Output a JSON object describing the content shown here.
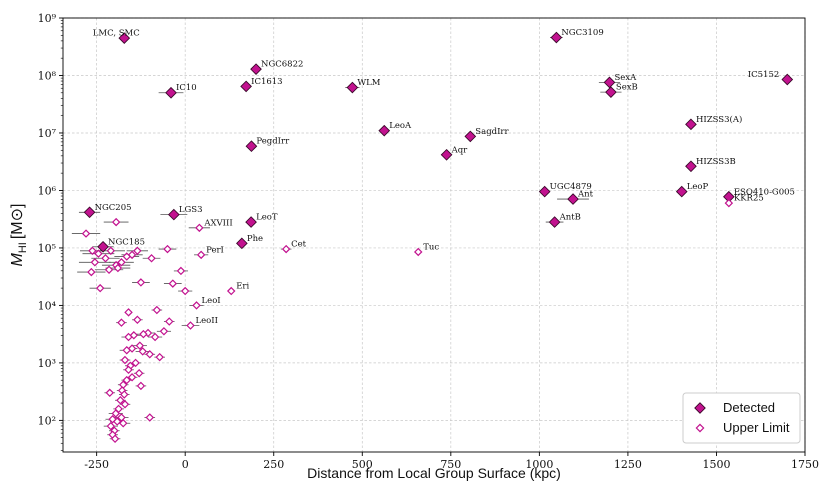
{
  "chart_data": {
    "type": "scatter",
    "title": "",
    "xlabel": "Distance from Local Group Surface (kpc)",
    "ylabel": "M_HI [M_⊙]",
    "xlim": [
      -345,
      1750
    ],
    "ylim_log10": [
      1.45,
      9.0
    ],
    "x_ticks": [
      -250,
      0,
      250,
      500,
      750,
      1000,
      1250,
      1500,
      1750
    ],
    "y_ticks": [
      {
        "e": 2,
        "label": "10²"
      },
      {
        "e": 3,
        "label": "10³"
      },
      {
        "e": 4,
        "label": "10⁴"
      },
      {
        "e": 5,
        "label": "10⁵"
      },
      {
        "e": 6,
        "label": "10⁶"
      },
      {
        "e": 7,
        "label": "10⁷"
      },
      {
        "e": 8,
        "label": "10⁸"
      },
      {
        "e": 9,
        "label": "10⁹"
      }
    ],
    "ylabel_main": "M",
    "ylabel_sub": "HI",
    "ylabel_unit": "[M⊙]",
    "grid": true,
    "legend": {
      "position": "bottom-right",
      "entries": [
        {
          "label": "Detected",
          "marker": "filled-diamond"
        },
        {
          "label": "Upper Limit",
          "marker": "open-diamond"
        }
      ]
    },
    "colors": {
      "detected_fill": "#c2128f",
      "detected_edge": "#3a0a2a",
      "upper_edge": "#c2128f",
      "errorbar": "#555555",
      "grid": "#c8c8c8"
    },
    "series": [
      {
        "name": "Detected",
        "points": [
          {
            "label": "LMC, SMC",
            "x": -172,
            "logm": 8.65,
            "xerr": 8
          },
          {
            "label": "NGC3109",
            "x": 1048,
            "logm": 8.66,
            "xerr": 18
          },
          {
            "label": "NGC6822",
            "x": 200,
            "logm": 8.11,
            "xerr": 10
          },
          {
            "label": "IC1613",
            "x": 172,
            "logm": 7.81,
            "xerr": 15
          },
          {
            "label": "WLM",
            "x": 472,
            "logm": 7.79,
            "xerr": 20
          },
          {
            "label": "IC10",
            "x": -40,
            "logm": 7.7,
            "xerr": 35
          },
          {
            "label": "SexA",
            "x": 1198,
            "logm": 7.88,
            "xerr": 30
          },
          {
            "label": "SexB",
            "x": 1202,
            "logm": 7.71,
            "xerr": 30
          },
          {
            "label": "IC5152",
            "x": 1700,
            "logm": 7.93,
            "xerr": 0
          },
          {
            "label": "LeoA",
            "x": 562,
            "logm": 7.04,
            "xerr": 15
          },
          {
            "label": "SagdIrr",
            "x": 805,
            "logm": 6.94,
            "xerr": 15
          },
          {
            "label": "HIZSS3(A)",
            "x": 1428,
            "logm": 7.15,
            "xerr": 0
          },
          {
            "label": "PegdIrr",
            "x": 187,
            "logm": 6.77,
            "xerr": 10
          },
          {
            "label": "Aqr",
            "x": 738,
            "logm": 6.62,
            "xerr": 15
          },
          {
            "label": "HIZSS3B",
            "x": 1428,
            "logm": 6.42,
            "xerr": 0
          },
          {
            "label": "UGC4879",
            "x": 1015,
            "logm": 5.98,
            "xerr": 0
          },
          {
            "label": "Ant",
            "x": 1095,
            "logm": 5.85,
            "xerr": 45
          },
          {
            "label": "LeoP",
            "x": 1402,
            "logm": 5.98,
            "xerr": 0
          },
          {
            "label": "ESO410-G005",
            "x": 1535,
            "logm": 5.89,
            "xerr": 0
          },
          {
            "label": "NGC205",
            "x": -270,
            "logm": 5.62,
            "xerr": 30
          },
          {
            "label": "LGS3",
            "x": -32,
            "logm": 5.58,
            "xerr": 38
          },
          {
            "label": "LeoT",
            "x": 186,
            "logm": 5.45,
            "xerr": 15
          },
          {
            "label": "AntB",
            "x": 1043,
            "logm": 5.45,
            "xerr": 25
          },
          {
            "label": "Phe",
            "x": 160,
            "logm": 5.08,
            "xerr": 10
          },
          {
            "label": "NGC185",
            "x": -232,
            "logm": 5.02,
            "xerr": 30
          }
        ]
      },
      {
        "name": "Upper Limit",
        "points": [
          {
            "label": "AXVIII",
            "x": 40,
            "logm": 5.35,
            "xerr": 30
          },
          {
            "label": "KKR25",
            "x": 1535,
            "logm": 5.78,
            "xerr": 0
          },
          {
            "label": "Cet",
            "x": 285,
            "logm": 4.98,
            "xerr": 15
          },
          {
            "label": "Tuc",
            "x": 658,
            "logm": 4.93,
            "xerr": 0
          },
          {
            "label": "PerI",
            "x": 45,
            "logm": 4.88,
            "xerr": 20
          },
          {
            "label": "Eri",
            "x": 130,
            "logm": 4.25,
            "xerr": 8
          },
          {
            "label": "LeoI",
            "x": 32,
            "logm": 4.0,
            "xerr": 20
          },
          {
            "label": "LeoII",
            "x": 15,
            "logm": 3.65,
            "xerr": 25
          },
          {
            "label": "",
            "x": -195,
            "logm": 5.45,
            "xerr": 35
          },
          {
            "label": "",
            "x": -280,
            "logm": 5.25,
            "xerr": 40
          },
          {
            "label": "",
            "x": -262,
            "logm": 4.95,
            "xerr": 35
          },
          {
            "label": "",
            "x": -245,
            "logm": 4.9,
            "xerr": 45
          },
          {
            "label": "",
            "x": -225,
            "logm": 4.82,
            "xerr": 40
          },
          {
            "label": "",
            "x": -210,
            "logm": 4.95,
            "xerr": 40
          },
          {
            "label": "",
            "x": -255,
            "logm": 4.75,
            "xerr": 45
          },
          {
            "label": "",
            "x": -195,
            "logm": 4.7,
            "xerr": 40
          },
          {
            "label": "",
            "x": -180,
            "logm": 4.75,
            "xerr": 35
          },
          {
            "label": "",
            "x": -165,
            "logm": 4.85,
            "xerr": 35
          },
          {
            "label": "",
            "x": -150,
            "logm": 4.88,
            "xerr": 30
          },
          {
            "label": "",
            "x": -135,
            "logm": 4.95,
            "xerr": 30
          },
          {
            "label": "",
            "x": -95,
            "logm": 4.82,
            "xerr": 25
          },
          {
            "label": "",
            "x": -50,
            "logm": 4.98,
            "xerr": 25
          },
          {
            "label": "",
            "x": -12,
            "logm": 4.6,
            "xerr": 20
          },
          {
            "label": "",
            "x": -265,
            "logm": 4.58,
            "xerr": 40
          },
          {
            "label": "",
            "x": -215,
            "logm": 4.62,
            "xerr": 40
          },
          {
            "label": "",
            "x": -190,
            "logm": 4.65,
            "xerr": 35
          },
          {
            "label": "",
            "x": -125,
            "logm": 4.4,
            "xerr": 25
          },
          {
            "label": "",
            "x": -35,
            "logm": 4.38,
            "xerr": 25
          },
          {
            "label": "",
            "x": 0,
            "logm": 4.25,
            "xerr": 20
          },
          {
            "label": "",
            "x": -240,
            "logm": 4.3,
            "xerr": 30
          },
          {
            "label": "",
            "x": -80,
            "logm": 3.92,
            "xerr": 15
          },
          {
            "label": "",
            "x": -135,
            "logm": 3.75,
            "xerr": 15
          },
          {
            "label": "",
            "x": -45,
            "logm": 3.72,
            "xerr": 15
          },
          {
            "label": "",
            "x": -180,
            "logm": 3.7,
            "xerr": 15
          },
          {
            "label": "",
            "x": -60,
            "logm": 3.55,
            "xerr": 20
          },
          {
            "label": "",
            "x": -105,
            "logm": 3.52,
            "xerr": 20
          },
          {
            "label": "",
            "x": -145,
            "logm": 3.48,
            "xerr": 20
          },
          {
            "label": "",
            "x": -118,
            "logm": 3.5,
            "xerr": 20
          },
          {
            "label": "",
            "x": -160,
            "logm": 3.45,
            "xerr": 20
          },
          {
            "label": "",
            "x": -85,
            "logm": 3.45,
            "xerr": 20
          },
          {
            "label": "",
            "x": -128,
            "logm": 3.3,
            "xerr": 20
          },
          {
            "label": "",
            "x": -150,
            "logm": 3.25,
            "xerr": 15
          },
          {
            "label": "",
            "x": -165,
            "logm": 3.22,
            "xerr": 20
          },
          {
            "label": "",
            "x": -120,
            "logm": 3.2,
            "xerr": 20
          },
          {
            "label": "",
            "x": -100,
            "logm": 3.15,
            "xerr": 15
          },
          {
            "label": "",
            "x": -72,
            "logm": 3.1,
            "xerr": 15
          },
          {
            "label": "",
            "x": -170,
            "logm": 3.05,
            "xerr": 15
          },
          {
            "label": "",
            "x": -140,
            "logm": 3.0,
            "xerr": 15
          },
          {
            "label": "",
            "x": -155,
            "logm": 2.95,
            "xerr": 15
          },
          {
            "label": "",
            "x": -160,
            "logm": 2.88,
            "xerr": 15
          },
          {
            "label": "",
            "x": -130,
            "logm": 2.82,
            "xerr": 15
          },
          {
            "label": "",
            "x": -150,
            "logm": 2.75,
            "xerr": 15
          },
          {
            "label": "",
            "x": -165,
            "logm": 2.7,
            "xerr": 15
          },
          {
            "label": "",
            "x": -175,
            "logm": 2.62,
            "xerr": 15
          },
          {
            "label": "",
            "x": -125,
            "logm": 2.6,
            "xerr": 15
          },
          {
            "label": "",
            "x": -178,
            "logm": 2.52,
            "xerr": 15
          },
          {
            "label": "",
            "x": -172,
            "logm": 2.45,
            "xerr": 15
          },
          {
            "label": "",
            "x": -183,
            "logm": 2.35,
            "xerr": 15
          },
          {
            "label": "",
            "x": -170,
            "logm": 2.28,
            "xerr": 15
          },
          {
            "label": "",
            "x": -188,
            "logm": 2.2,
            "xerr": 15
          },
          {
            "label": "",
            "x": -213,
            "logm": 2.48,
            "xerr": 15
          },
          {
            "label": "",
            "x": -196,
            "logm": 2.12,
            "xerr": 20
          },
          {
            "label": "",
            "x": -180,
            "logm": 2.05,
            "xerr": 20
          },
          {
            "label": "",
            "x": -205,
            "logm": 2.02,
            "xerr": 20
          },
          {
            "label": "",
            "x": -192,
            "logm": 1.98,
            "xerr": 20
          },
          {
            "label": "",
            "x": -175,
            "logm": 1.95,
            "xerr": 20
          },
          {
            "label": "",
            "x": -210,
            "logm": 1.9,
            "xerr": 20
          },
          {
            "label": "",
            "x": -200,
            "logm": 1.82,
            "xerr": 15
          },
          {
            "label": "",
            "x": -205,
            "logm": 1.75,
            "xerr": 15
          },
          {
            "label": "",
            "x": -198,
            "logm": 1.68,
            "xerr": 15
          },
          {
            "label": "",
            "x": -100,
            "logm": 2.05,
            "xerr": 15
          },
          {
            "label": "",
            "x": -160,
            "logm": 3.88,
            "xerr": 10
          }
        ]
      }
    ]
  }
}
